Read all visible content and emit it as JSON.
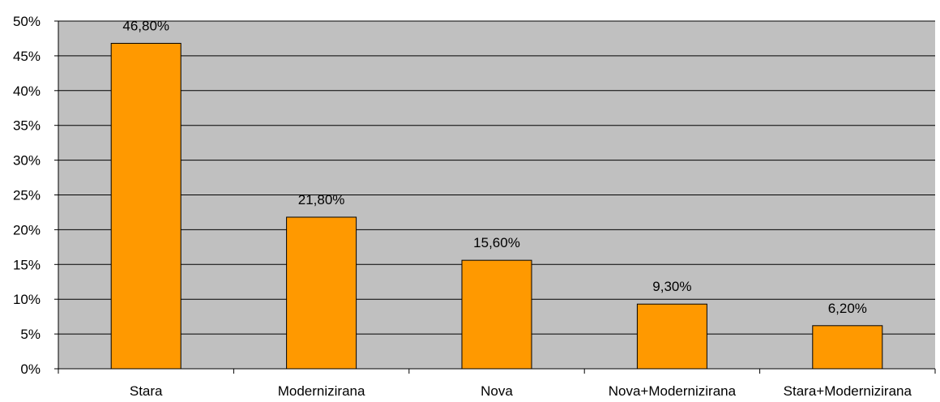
{
  "chart_data": {
    "type": "bar",
    "title": "",
    "xlabel": "",
    "ylabel": "",
    "categories": [
      "Stara",
      "Modernizirana",
      "Nova",
      "Nova+Modernizirana",
      "Stara+Modernizirana"
    ],
    "values": [
      46.8,
      21.8,
      15.6,
      9.3,
      6.2
    ],
    "value_labels": [
      "46,80%",
      "21,80%",
      "15,60%",
      "9,30%",
      "6,20%"
    ],
    "ylim": [
      0,
      50
    ],
    "yticks": [
      0,
      5,
      10,
      15,
      20,
      25,
      30,
      35,
      40,
      45,
      50
    ],
    "ytick_labels": [
      "0%",
      "5%",
      "10%",
      "15%",
      "20%",
      "25%",
      "30%",
      "35%",
      "40%",
      "45%",
      "50%"
    ],
    "grid": true,
    "legend": "none",
    "colors": {
      "bar": "#FF9900",
      "bar_stroke": "#000000",
      "plot_background": "#C0C0C0",
      "grid": "#000000",
      "page_background": "#FFFFFF"
    }
  }
}
